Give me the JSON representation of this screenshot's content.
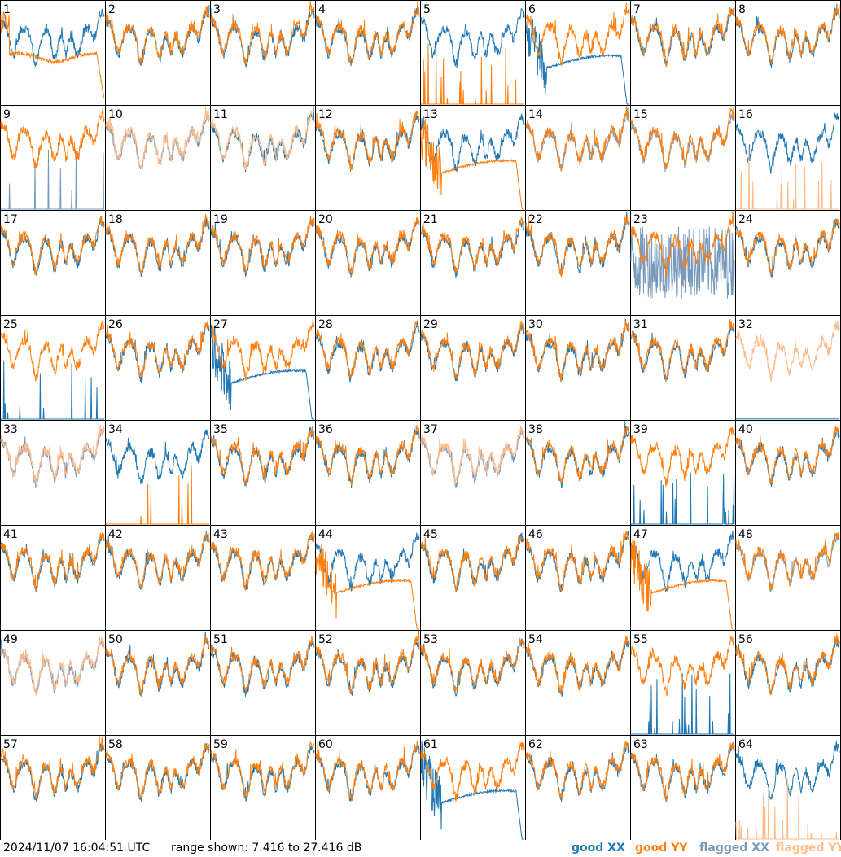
{
  "footer": {
    "timestamp": "2024/11/07 16:04:51 UTC",
    "range": "range shown: 7.416 to 27.416 dB",
    "legend": {
      "good_xx": "good XX",
      "good_yy": "good YY",
      "flagged_xx": "flagged XX",
      "flagged_yy": "flagged YY"
    }
  },
  "colors": {
    "good_xx": "#1f77b4",
    "good_yy": "#ff7f0e",
    "flagged_xx": "#7799bb",
    "flagged_yy": "#ffbb88",
    "grid": "#000000"
  },
  "chart_data": {
    "type": "line",
    "grid": "8x8 small multiples, one panel per input",
    "ylim_db": [
      7.416,
      27.416
    ],
    "series_kinds": [
      "good XX",
      "good YY",
      "flagged XX",
      "flagged YY"
    ],
    "panels": [
      {
        "n": 1,
        "xx": "good",
        "yy": "good",
        "yy_shape": "low"
      },
      {
        "n": 2,
        "xx": "good",
        "yy": "good"
      },
      {
        "n": 3,
        "xx": "good",
        "yy": "good"
      },
      {
        "n": 4,
        "xx": "good",
        "yy": "good"
      },
      {
        "n": 5,
        "xx": "good",
        "yy": "good",
        "yy_shape": "spikes"
      },
      {
        "n": 6,
        "xx": "good",
        "yy": "good",
        "xx_shape": "hump"
      },
      {
        "n": 7,
        "xx": "good",
        "yy": "good"
      },
      {
        "n": 8,
        "xx": "good",
        "yy": "good"
      },
      {
        "n": 9,
        "xx": "flagged",
        "yy": "good",
        "xx_shape": "spikes"
      },
      {
        "n": 10,
        "xx": "flagged",
        "yy": "flagged"
      },
      {
        "n": 11,
        "xx": "good",
        "yy": "flagged"
      },
      {
        "n": 12,
        "xx": "good",
        "yy": "good"
      },
      {
        "n": 13,
        "xx": "good",
        "yy": "good",
        "yy_shape": "hump"
      },
      {
        "n": 14,
        "xx": "flagged",
        "yy": "good"
      },
      {
        "n": 15,
        "xx": "flagged",
        "yy": "good"
      },
      {
        "n": 16,
        "xx": "good",
        "yy": "flagged",
        "yy_shape": "spikes"
      },
      {
        "n": 17,
        "xx": "good",
        "yy": "good"
      },
      {
        "n": 18,
        "xx": "good",
        "yy": "good"
      },
      {
        "n": 19,
        "xx": "good",
        "yy": "good"
      },
      {
        "n": 20,
        "xx": "good",
        "yy": "good"
      },
      {
        "n": 21,
        "xx": "good",
        "yy": "good"
      },
      {
        "n": 22,
        "xx": "good",
        "yy": "good"
      },
      {
        "n": 23,
        "xx": "flagged",
        "yy": "good",
        "xx_shape": "noise"
      },
      {
        "n": 24,
        "xx": "good",
        "yy": "good"
      },
      {
        "n": 25,
        "xx": "good",
        "yy": "good",
        "xx_shape": "spikes"
      },
      {
        "n": 26,
        "xx": "good",
        "yy": "good"
      },
      {
        "n": 27,
        "xx": "good",
        "yy": "good",
        "xx_shape": "hump"
      },
      {
        "n": 28,
        "xx": "good",
        "yy": "good"
      },
      {
        "n": 29,
        "xx": "good",
        "yy": "good"
      },
      {
        "n": 30,
        "xx": "good",
        "yy": "good"
      },
      {
        "n": 31,
        "xx": "good",
        "yy": "good"
      },
      {
        "n": 32,
        "xx": "good",
        "yy": "flagged",
        "xx_shape": "flat"
      },
      {
        "n": 33,
        "xx": "flagged",
        "yy": "flagged"
      },
      {
        "n": 34,
        "xx": "good",
        "yy": "good",
        "yy_shape": "spikes"
      },
      {
        "n": 35,
        "xx": "good",
        "yy": "good"
      },
      {
        "n": 36,
        "xx": "good",
        "yy": "good"
      },
      {
        "n": 37,
        "xx": "flagged",
        "yy": "flagged"
      },
      {
        "n": 38,
        "xx": "good",
        "yy": "good"
      },
      {
        "n": 39,
        "xx": "good",
        "yy": "good",
        "xx_shape": "spikes"
      },
      {
        "n": 40,
        "xx": "good",
        "yy": "good"
      },
      {
        "n": 41,
        "xx": "good",
        "yy": "good"
      },
      {
        "n": 42,
        "xx": "good",
        "yy": "good"
      },
      {
        "n": 43,
        "xx": "good",
        "yy": "good"
      },
      {
        "n": 44,
        "xx": "good",
        "yy": "good",
        "yy_shape": "hump"
      },
      {
        "n": 45,
        "xx": "good",
        "yy": "good"
      },
      {
        "n": 46,
        "xx": "good",
        "yy": "good"
      },
      {
        "n": 47,
        "xx": "good",
        "yy": "good",
        "yy_shape": "hump"
      },
      {
        "n": 48,
        "xx": "flagged",
        "yy": "good"
      },
      {
        "n": 49,
        "xx": "flagged",
        "yy": "flagged"
      },
      {
        "n": 50,
        "xx": "good",
        "yy": "good"
      },
      {
        "n": 51,
        "xx": "good",
        "yy": "good"
      },
      {
        "n": 52,
        "xx": "good",
        "yy": "good"
      },
      {
        "n": 53,
        "xx": "good",
        "yy": "good"
      },
      {
        "n": 54,
        "xx": "good",
        "yy": "good"
      },
      {
        "n": 55,
        "xx": "good",
        "yy": "good",
        "xx_shape": "spikes"
      },
      {
        "n": 56,
        "xx": "good",
        "yy": "good"
      },
      {
        "n": 57,
        "xx": "good",
        "yy": "good"
      },
      {
        "n": 58,
        "xx": "good",
        "yy": "good"
      },
      {
        "n": 59,
        "xx": "good",
        "yy": "good"
      },
      {
        "n": 60,
        "xx": "good",
        "yy": "good"
      },
      {
        "n": 61,
        "xx": "good",
        "yy": "good",
        "xx_shape": "hump"
      },
      {
        "n": 62,
        "xx": "good",
        "yy": "good"
      },
      {
        "n": 63,
        "xx": "good",
        "yy": "good"
      },
      {
        "n": 64,
        "xx": "good",
        "yy": "flagged",
        "yy_shape": "spikes"
      }
    ]
  }
}
